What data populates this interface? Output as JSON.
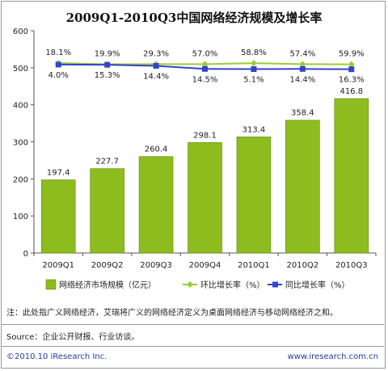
{
  "chart_data": {
    "type": "bar",
    "title": "2009Q1-2010Q3中国网络经济规模及增长率",
    "categories": [
      "2009Q1",
      "2009Q2",
      "2009Q3",
      "2009Q4",
      "2010Q1",
      "2010Q2",
      "2010Q3"
    ],
    "ylim": [
      0,
      600
    ],
    "yticks": [
      0,
      100,
      200,
      300,
      400,
      500,
      600
    ],
    "series": [
      {
        "name": "网络经济市场规模（亿元）",
        "type": "bar",
        "color": "#8cbc1e",
        "values": [
          197.4,
          227.7,
          260.4,
          298.1,
          313.4,
          358.4,
          416.8
        ],
        "labels": [
          "197.4",
          "227.7",
          "260.4",
          "298.1",
          "313.4",
          "358.4",
          "416.8"
        ]
      },
      {
        "name": "环比增长率（%）",
        "type": "line",
        "color": "#9ccc33",
        "values": [
          4.0,
          15.3,
          14.4,
          14.5,
          5.1,
          14.4,
          16.3
        ],
        "labels": [
          "4.0%",
          "15.3%",
          "14.4%",
          "14.5%",
          "5.1%",
          "14.4%",
          "16.3%"
        ]
      },
      {
        "name": "同比增长率（%）",
        "type": "line",
        "color": "#3344cc",
        "values": [
          18.1,
          19.9,
          29.3,
          57.0,
          58.8,
          57.4,
          59.9
        ],
        "labels": [
          "18.1%",
          "19.9%",
          "29.3%",
          "57.0%",
          "58.8%",
          "57.4%",
          "59.9%"
        ]
      }
    ],
    "legend": "bottom",
    "grid": false
  },
  "notes": {
    "note": "注：此处指广义网络经济，艾瑞将广义的网络经济定义为桌面网络经济与移动网络经济之和。",
    "source": "Source：企业公开财报、行业访谈。"
  },
  "footer": {
    "copyright": "©2010.10 iResearch Inc.",
    "website": "www.iresearch.com.cn"
  }
}
